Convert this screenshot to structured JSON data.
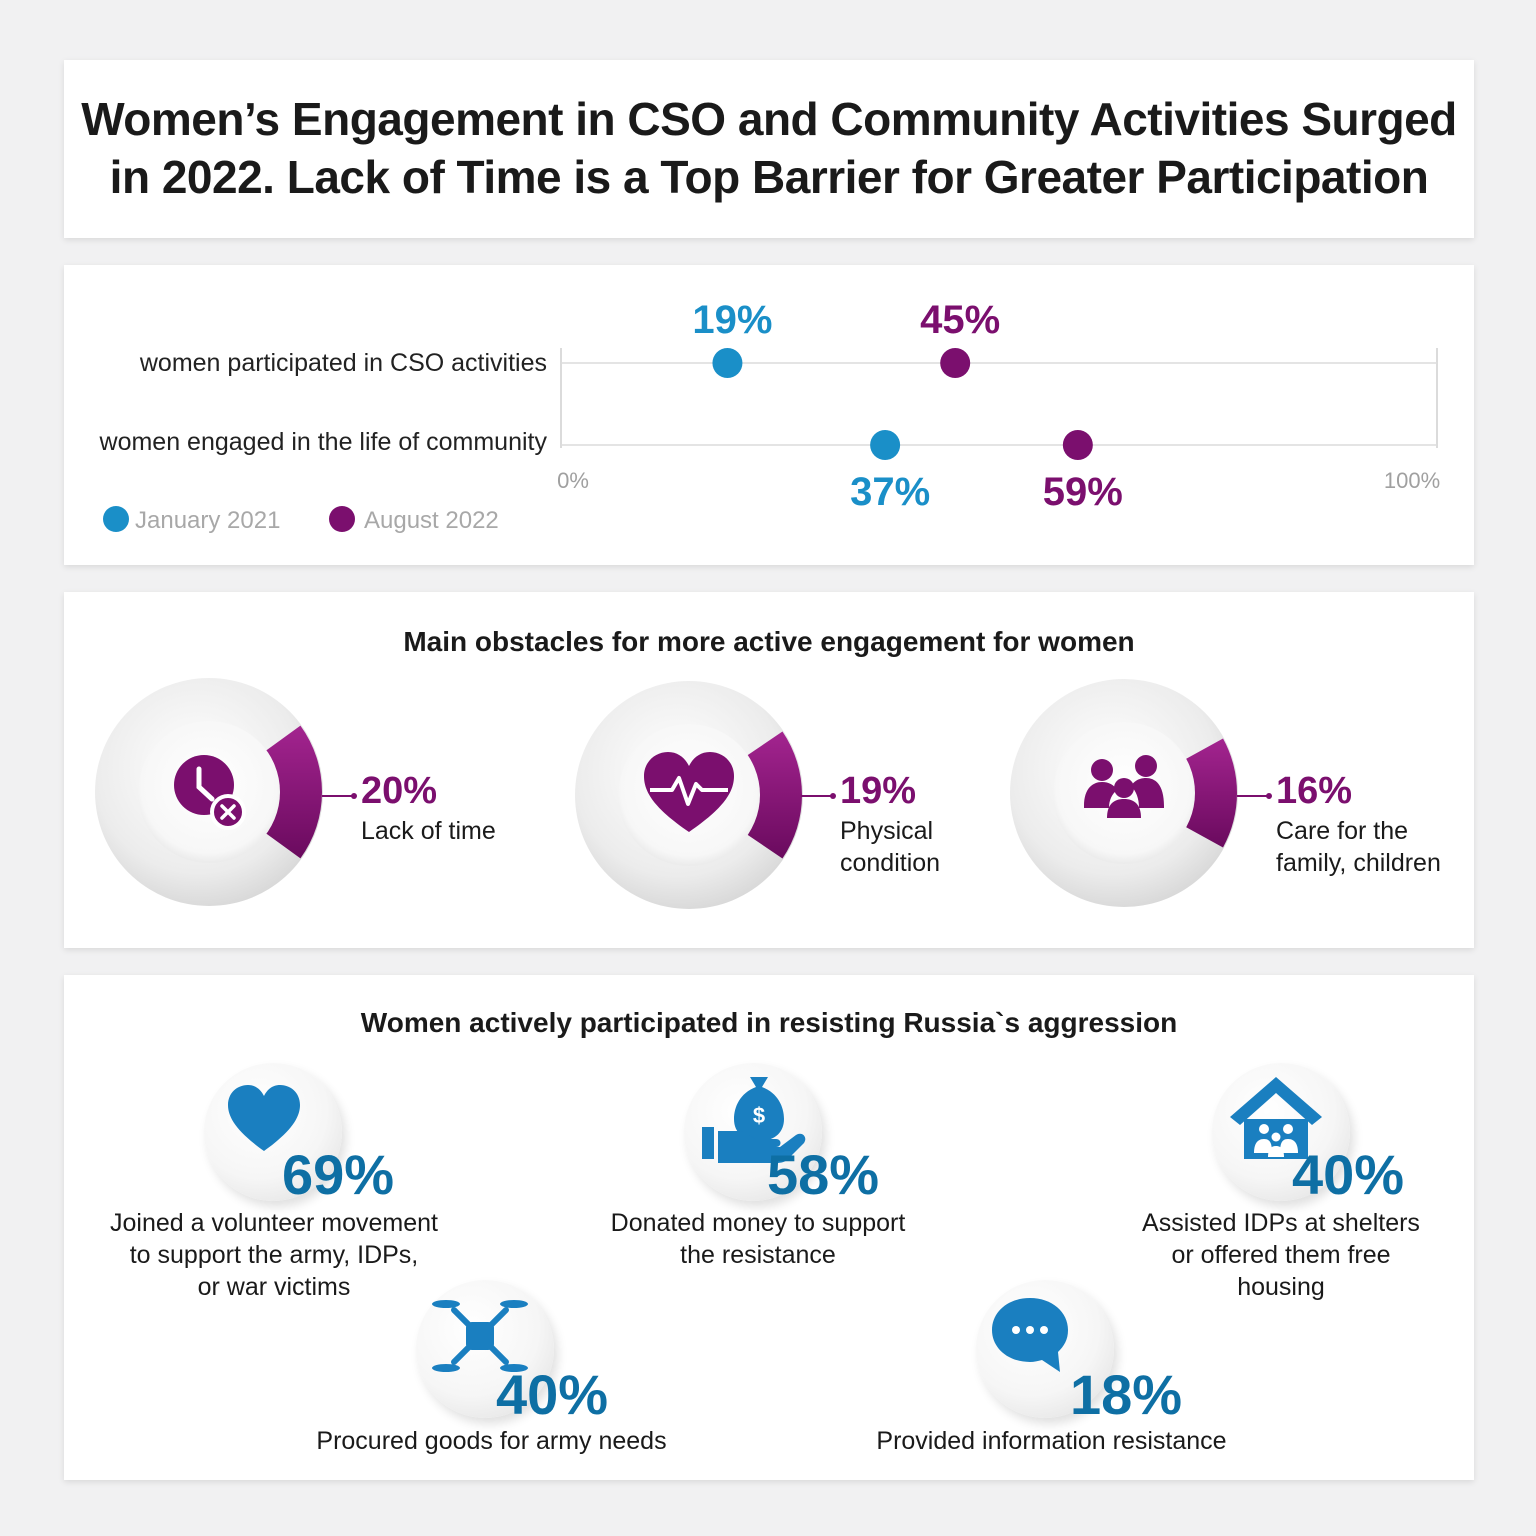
{
  "title": "Women’s Engagement in CSO and Community Activities Surged in 2022. Lack of Time is a Top Barrier for Greater Participation",
  "colors": {
    "blue": "#1a8fc8",
    "purple": "#7b0f6e",
    "dark_blue": "#0e6fa4"
  },
  "chart_data": [
    {
      "type": "dumbbell",
      "categories": [
        "women participated in CSO activities",
        "women engaged in the life of community"
      ],
      "series": [
        {
          "name": "January 2021",
          "values": [
            19,
            37
          ]
        },
        {
          "name": "August 2022",
          "values": [
            45,
            59
          ]
        }
      ],
      "value_labels": {
        "January 2021": [
          "19%",
          "37%"
        ],
        "August 2022": [
          "45%",
          "59%"
        ]
      },
      "xlim": [
        0,
        100
      ],
      "tick_labels": [
        "0%",
        "100%"
      ],
      "legend_position": "bottom-left"
    },
    {
      "type": "donut",
      "title": "Main obstacles for more active engagement for women",
      "categories": [
        "Lack of time",
        "Physical condition",
        "Care for the family, children"
      ],
      "values": [
        20,
        19,
        16
      ],
      "value_labels": [
        "20%",
        "19%",
        "16%"
      ],
      "icons": [
        "clock-x-icon",
        "heartbeat-icon",
        "family-icon"
      ]
    },
    {
      "type": "table",
      "title": "Women actively participated in resisting Russia`s aggression",
      "items": [
        {
          "value": 69,
          "value_label": "69%",
          "label_lines": [
            "Joined a volunteer movement",
            "to support the army, IDPs,",
            "or war victims"
          ],
          "icon": "heart-icon"
        },
        {
          "value": 58,
          "value_label": "58%",
          "label_lines": [
            "Donated money to support",
            "the resistance"
          ],
          "icon": "money-hand-icon"
        },
        {
          "value": 40,
          "value_label": "40%",
          "label_lines": [
            "Assisted IDPs at shelters",
            "or offered them free",
            "housing"
          ],
          "icon": "house-family-icon"
        },
        {
          "value": 40,
          "value_label": "40%",
          "label_lines": [
            "Procured goods for army needs"
          ],
          "icon": "drone-icon"
        },
        {
          "value": 18,
          "value_label": "18%",
          "label_lines": [
            "Provided information resistance"
          ],
          "icon": "chat-bubble-icon"
        }
      ]
    }
  ]
}
